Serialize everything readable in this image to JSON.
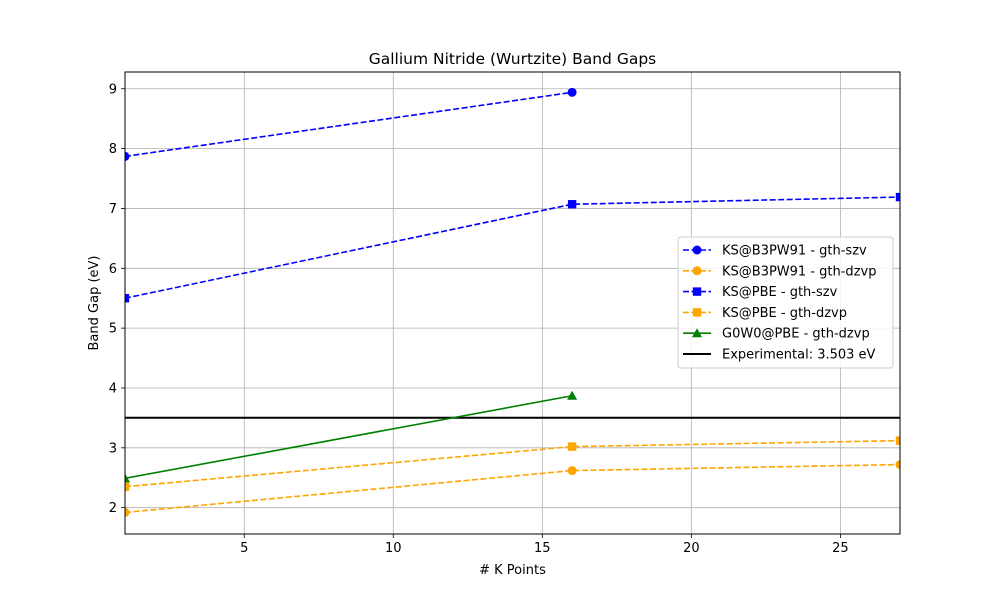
{
  "chart_data": {
    "type": "line",
    "title": "Gallium Nitride (Wurtzite) Band Gaps",
    "xlabel": "# K Points",
    "ylabel": "Band Gap (eV)",
    "xlim": [
      1,
      27
    ],
    "ylim": [
      1.56,
      9.28
    ],
    "xticks": [
      5,
      10,
      15,
      20,
      25
    ],
    "yticks": [
      2,
      3,
      4,
      5,
      6,
      7,
      8,
      9
    ],
    "grid": true,
    "legend_position": "center-right",
    "series": [
      {
        "name": "KS@B3PW91 - gth-szv",
        "color": "#0000ff",
        "linestyle": "dashed",
        "marker": "circle",
        "x": [
          1,
          16
        ],
        "y": [
          7.87,
          8.94
        ]
      },
      {
        "name": "KS@B3PW91 - gth-dzvp",
        "color": "#ffa500",
        "linestyle": "dashed",
        "marker": "circle",
        "x": [
          1,
          16,
          27
        ],
        "y": [
          1.92,
          2.62,
          2.72
        ]
      },
      {
        "name": "KS@PBE - gth-szv",
        "color": "#0000ff",
        "linestyle": "dashed",
        "marker": "square",
        "x": [
          1,
          16,
          27
        ],
        "y": [
          5.5,
          7.07,
          7.19
        ]
      },
      {
        "name": "KS@PBE - gth-dzvp",
        "color": "#ffa500",
        "linestyle": "dashed",
        "marker": "square",
        "x": [
          1,
          16,
          27
        ],
        "y": [
          2.35,
          3.02,
          3.12
        ]
      },
      {
        "name": "G0W0@PBE - gth-dzvp",
        "color": "#008000",
        "linestyle": "solid",
        "marker": "triangle",
        "x": [
          1,
          16
        ],
        "y": [
          2.49,
          3.87
        ]
      }
    ],
    "reference_line": {
      "name": "Experimental: 3.503 eV",
      "y": 3.503,
      "color": "#000000"
    }
  }
}
